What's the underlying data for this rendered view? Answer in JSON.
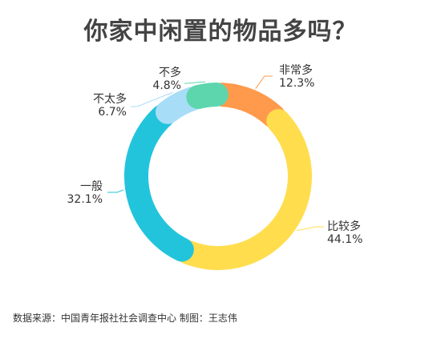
{
  "chart_data": {
    "type": "pie",
    "title": "你家中闲置的物品多吗？",
    "categories": [
      "非常多",
      "比较多",
      "一般",
      "不太多",
      "不多"
    ],
    "values": [
      12.3,
      44.1,
      32.1,
      6.7,
      4.8
    ],
    "value_labels": [
      "12.3%",
      "44.1%",
      "32.1%",
      "6.7%",
      "4.8%"
    ],
    "colors": [
      "#FF9A4D",
      "#FFDD4D",
      "#22C4DC",
      "#A8DDF8",
      "#5DD6AE"
    ]
  },
  "source": "数据来源：中国青年报社社会调查中心 制图：王志伟"
}
